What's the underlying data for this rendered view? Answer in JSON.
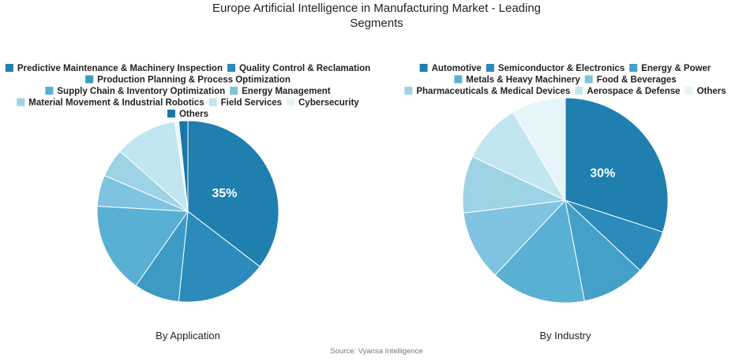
{
  "title_lines": [
    "Europe Artificial Intelligence in Manufacturing Market - Leading",
    "Segments"
  ],
  "source": "Source: Vyansa Intelligence",
  "chart_data": [
    {
      "type": "pie",
      "subtitle": "By Application",
      "slices": [
        {
          "label": "Predictive Maintenance & Machinery Inspection",
          "value": 35,
          "color": "#1f7fae",
          "show_pct": "35%"
        },
        {
          "label": "Quality Control & Reclamation",
          "value": 16,
          "color": "#2b8bba"
        },
        {
          "label": "Production Planning & Process Optimization",
          "value": 8,
          "color": "#3c9ac4"
        },
        {
          "label": "Supply Chain & Inventory Optimization",
          "value": 16,
          "color": "#5ab0d2"
        },
        {
          "label": "Energy Management",
          "value": 5.5,
          "color": "#7ec3df"
        },
        {
          "label": "Material Movement & Industrial Robotics",
          "value": 5,
          "color": "#9ed3e6"
        },
        {
          "label": "Field Services",
          "value": 11,
          "color": "#c2e6f0"
        },
        {
          "label": "Cybersecurity",
          "value": 0.7,
          "color": "#e6f5f9"
        },
        {
          "label": "Others",
          "value": 1.6,
          "color": "#1a77a8"
        }
      ],
      "legend_rows": [
        [
          0,
          1
        ],
        [
          2
        ],
        [
          3,
          4
        ],
        [
          5,
          6,
          7
        ],
        [
          8
        ]
      ]
    },
    {
      "type": "pie",
      "subtitle": "By Industry",
      "slices": [
        {
          "label": "Automotive",
          "value": 30,
          "color": "#1f7fae",
          "show_pct": "30%"
        },
        {
          "label": "Semiconductor & Electronics",
          "value": 7,
          "color": "#2b8bba"
        },
        {
          "label": "Energy & Power",
          "value": 10,
          "color": "#44a0c8"
        },
        {
          "label": "Metals & Heavy Machinery",
          "value": 15,
          "color": "#5ab0d2"
        },
        {
          "label": "Food & Beverages",
          "value": 11,
          "color": "#7ec3df"
        },
        {
          "label": "Pharmaceuticals & Medical Devices",
          "value": 9,
          "color": "#9ed3e6"
        },
        {
          "label": "Aerospace & Defense",
          "value": 9.5,
          "color": "#c2e6f0"
        },
        {
          "label": "Others",
          "value": 8.5,
          "color": "#e6f5f9"
        }
      ],
      "legend_rows": [
        [
          0,
          1,
          2
        ],
        [
          3,
          4
        ],
        [
          5,
          6,
          7
        ]
      ]
    }
  ]
}
